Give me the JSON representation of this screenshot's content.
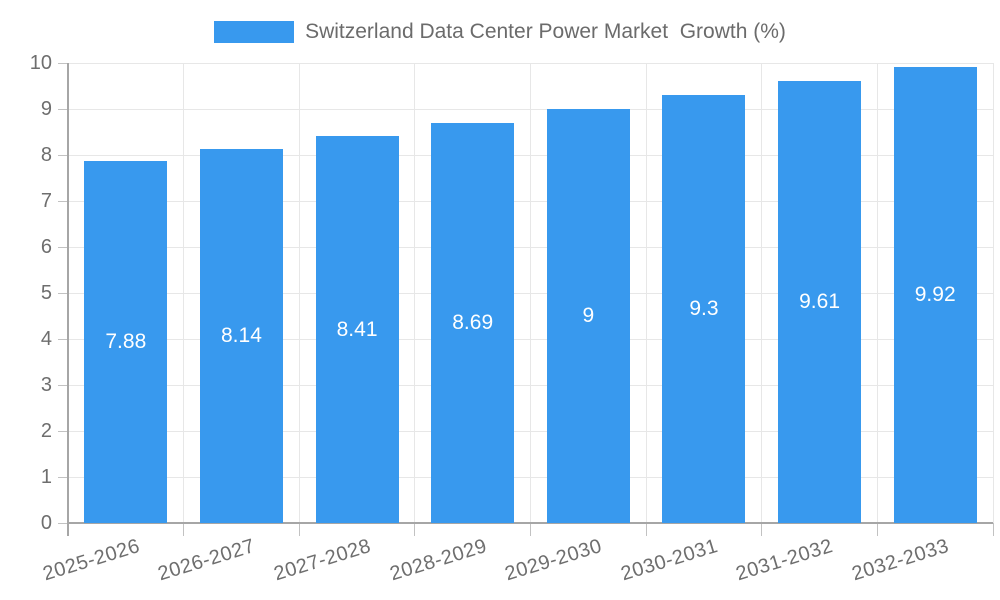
{
  "chart_data": {
    "type": "bar",
    "title": "Switzerland Data Center Power Market  Growth (%)",
    "legend": {
      "position": "top",
      "label": "Switzerland Data Center Power Market  Growth (%)"
    },
    "categories": [
      "2025-2026",
      "2026-2027",
      "2027-2028",
      "2028-2029",
      "2029-2030",
      "2030-2031",
      "2031-2032",
      "2032-2033"
    ],
    "values": [
      7.88,
      8.14,
      8.41,
      8.69,
      9,
      9.3,
      9.61,
      9.92
    ],
    "value_labels": [
      "7.88",
      "8.14",
      "8.41",
      "8.69",
      "9",
      "9.3",
      "9.61",
      "9.92"
    ],
    "xlabel": "",
    "ylabel": "",
    "ylim": [
      0,
      10
    ],
    "y_tick_step": 1,
    "y_tick_labels": [
      "0",
      "1",
      "2",
      "3",
      "4",
      "5",
      "6",
      "7",
      "8",
      "9",
      "10"
    ],
    "grid": true,
    "colors": {
      "bar": "#3899EE",
      "bar_value_label": "#FFFFFF",
      "grid_line": "#E7E7E7",
      "axis_line": "#A6A6A6",
      "tick_text": "#6E6E6E",
      "legend_text": "#6B6B6B"
    }
  }
}
